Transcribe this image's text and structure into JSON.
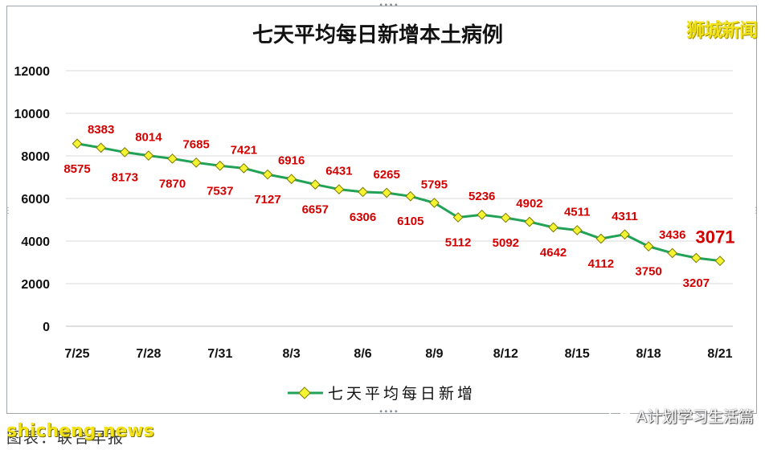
{
  "watermark": "狮城新闻",
  "source_note": "图表：联合早报",
  "site_mark": "shicheng.news",
  "wechat_mark": "A计划学习生活篇",
  "chart_data": {
    "type": "line",
    "title": "七天平均每日新增本土病例",
    "xlabel": "",
    "ylabel": "",
    "ylim": [
      0,
      12000
    ],
    "yticks": [
      "0",
      "2000",
      "4000",
      "6000",
      "8000",
      "10000",
      "12000"
    ],
    "grid": true,
    "legend_position": "bottom",
    "x": [
      "7/25",
      "7/26",
      "7/27",
      "7/28",
      "7/29",
      "7/30",
      "7/31",
      "8/1",
      "8/2",
      "8/3",
      "8/4",
      "8/5",
      "8/6",
      "8/7",
      "8/8",
      "8/9",
      "8/10",
      "8/11",
      "8/12",
      "8/13",
      "8/14",
      "8/15",
      "8/16",
      "8/17",
      "8/18",
      "8/19",
      "8/20",
      "8/21"
    ],
    "xtick_labels": [
      "7/25",
      "7/28",
      "7/31",
      "8/3",
      "8/6",
      "8/9",
      "8/12",
      "8/15",
      "8/18",
      "8/21"
    ],
    "series": [
      {
        "name": "七天平均每日新增",
        "color": "#22a257",
        "marker_color": "#f4f432",
        "values": [
          8575,
          8383,
          8173,
          8014,
          7870,
          7685,
          7537,
          7421,
          7127,
          6916,
          6657,
          6431,
          6306,
          6265,
          6105,
          5795,
          5112,
          5236,
          5092,
          4902,
          4642,
          4511,
          4112,
          4311,
          3750,
          3436,
          3207,
          3071
        ]
      }
    ],
    "label_color": "#d40000",
    "highlight_last_label": true
  }
}
